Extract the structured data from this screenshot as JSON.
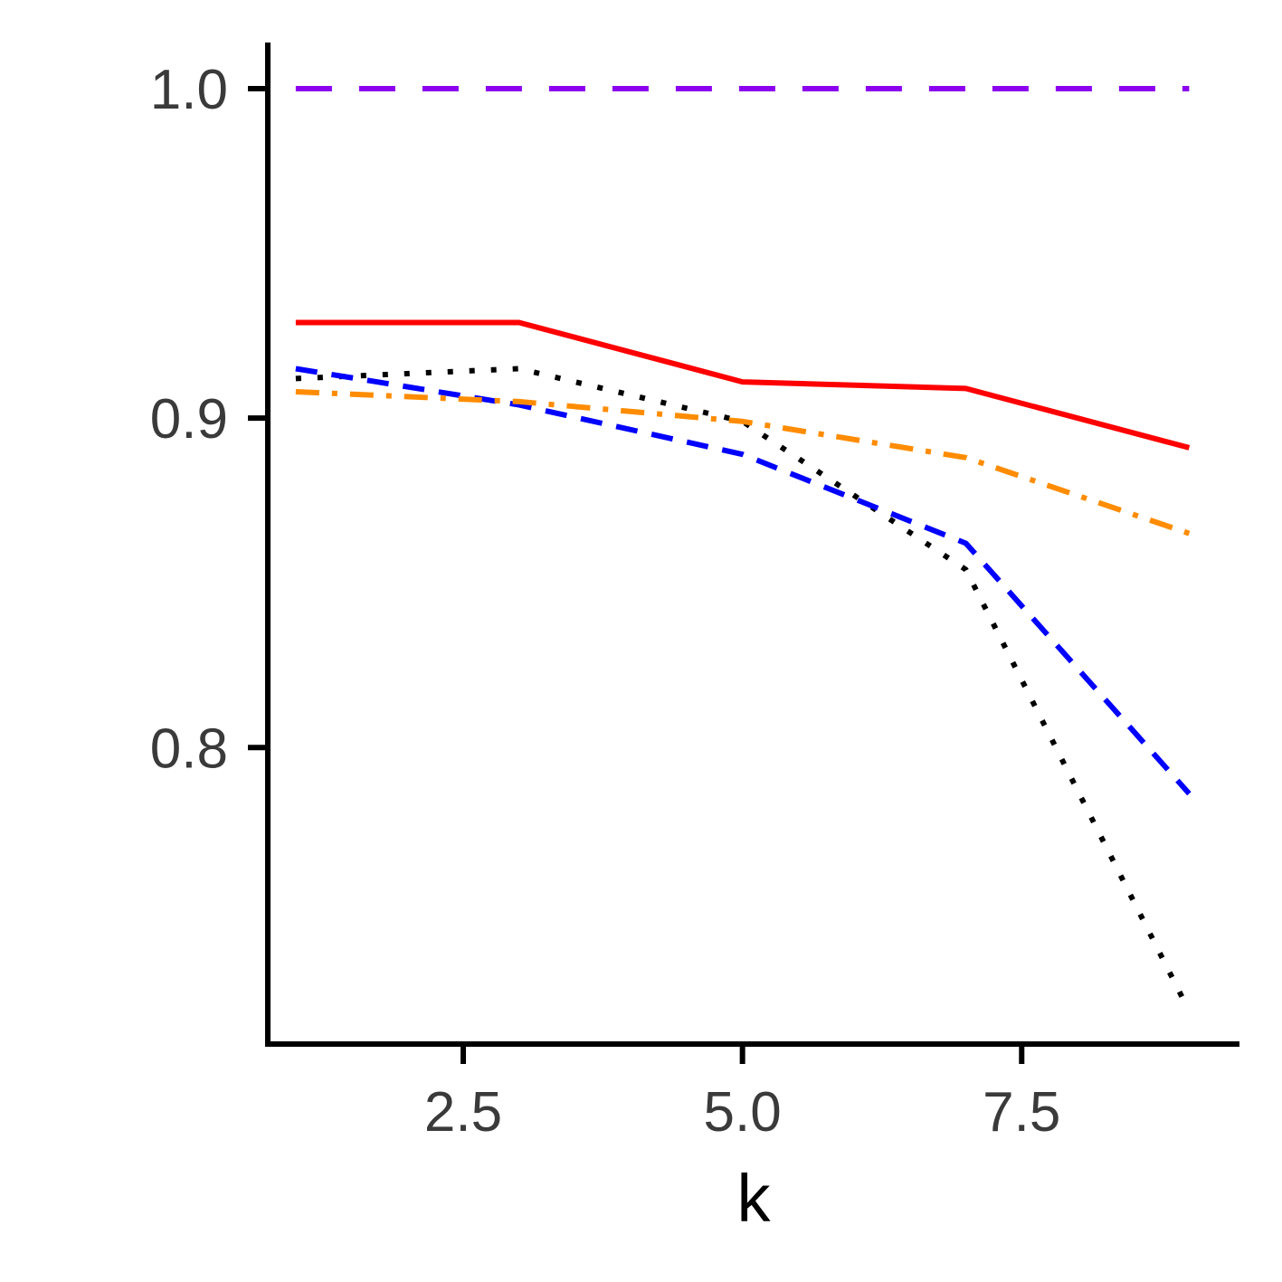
{
  "chart_data": {
    "type": "line",
    "title": "",
    "xlabel": "k",
    "ylabel": "",
    "xlim": [
      0.75,
      9.45
    ],
    "ylim": [
      0.71,
      1.014
    ],
    "x_ticks": [
      2.5,
      5.0,
      7.5
    ],
    "x_tick_labels": [
      "2.5",
      "5.0",
      "7.5"
    ],
    "y_ticks": [
      0.8,
      0.9,
      1.0
    ],
    "y_tick_labels": [
      "0.8",
      "0.9",
      "1.0"
    ],
    "grid": false,
    "legend": "none",
    "series": [
      {
        "color": "#8B00EE",
        "dash": "long-dash",
        "x": [
          1,
          3,
          5,
          7,
          9
        ],
        "y": [
          1.0,
          1.0,
          1.0,
          1.0,
          1.0
        ]
      },
      {
        "color": "#FF0000",
        "dash": "solid",
        "x": [
          1,
          3,
          5,
          7,
          9
        ],
        "y": [
          0.929,
          0.929,
          0.911,
          0.909,
          0.891
        ]
      },
      {
        "color": "#000000",
        "dash": "dotted",
        "x": [
          1,
          3,
          5,
          7,
          9
        ],
        "y": [
          0.912,
          0.915,
          0.899,
          0.854,
          0.72
        ]
      },
      {
        "color": "#0000FF",
        "dash": "dashed",
        "x": [
          1,
          3,
          5,
          7,
          9
        ],
        "y": [
          0.915,
          0.904,
          0.889,
          0.862,
          0.786
        ]
      },
      {
        "color": "#FF8C00",
        "dash": "dash-dot",
        "x": [
          1,
          3,
          5,
          7,
          9
        ],
        "y": [
          0.908,
          0.905,
          0.899,
          0.888,
          0.865
        ]
      }
    ]
  }
}
